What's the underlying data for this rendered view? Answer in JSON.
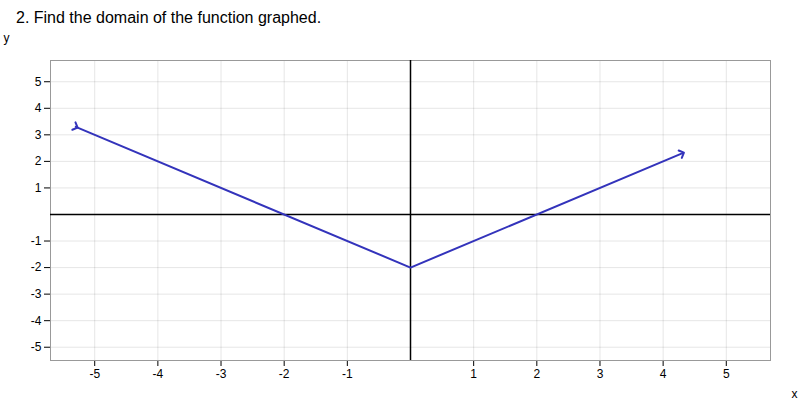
{
  "chart_data": {
    "type": "line",
    "title": "2. Find the domain of the function graphed.",
    "x": [
      -5.3,
      0,
      4.3
    ],
    "values": [
      3.3,
      -2,
      2.3
    ],
    "color": "#3333bb",
    "marker": "arrow",
    "xlabel": "x",
    "ylabel": "y",
    "xlim": [
      -5.7,
      5.7
    ],
    "ylim": [
      -5.5,
      5.8
    ],
    "xticks": [
      -5,
      -4,
      -3,
      -2,
      -1,
      1,
      2,
      3,
      4,
      5
    ],
    "yticks": [
      -5,
      -4,
      -3,
      -2,
      -1,
      1,
      2,
      3,
      4,
      5
    ],
    "grid": true
  }
}
